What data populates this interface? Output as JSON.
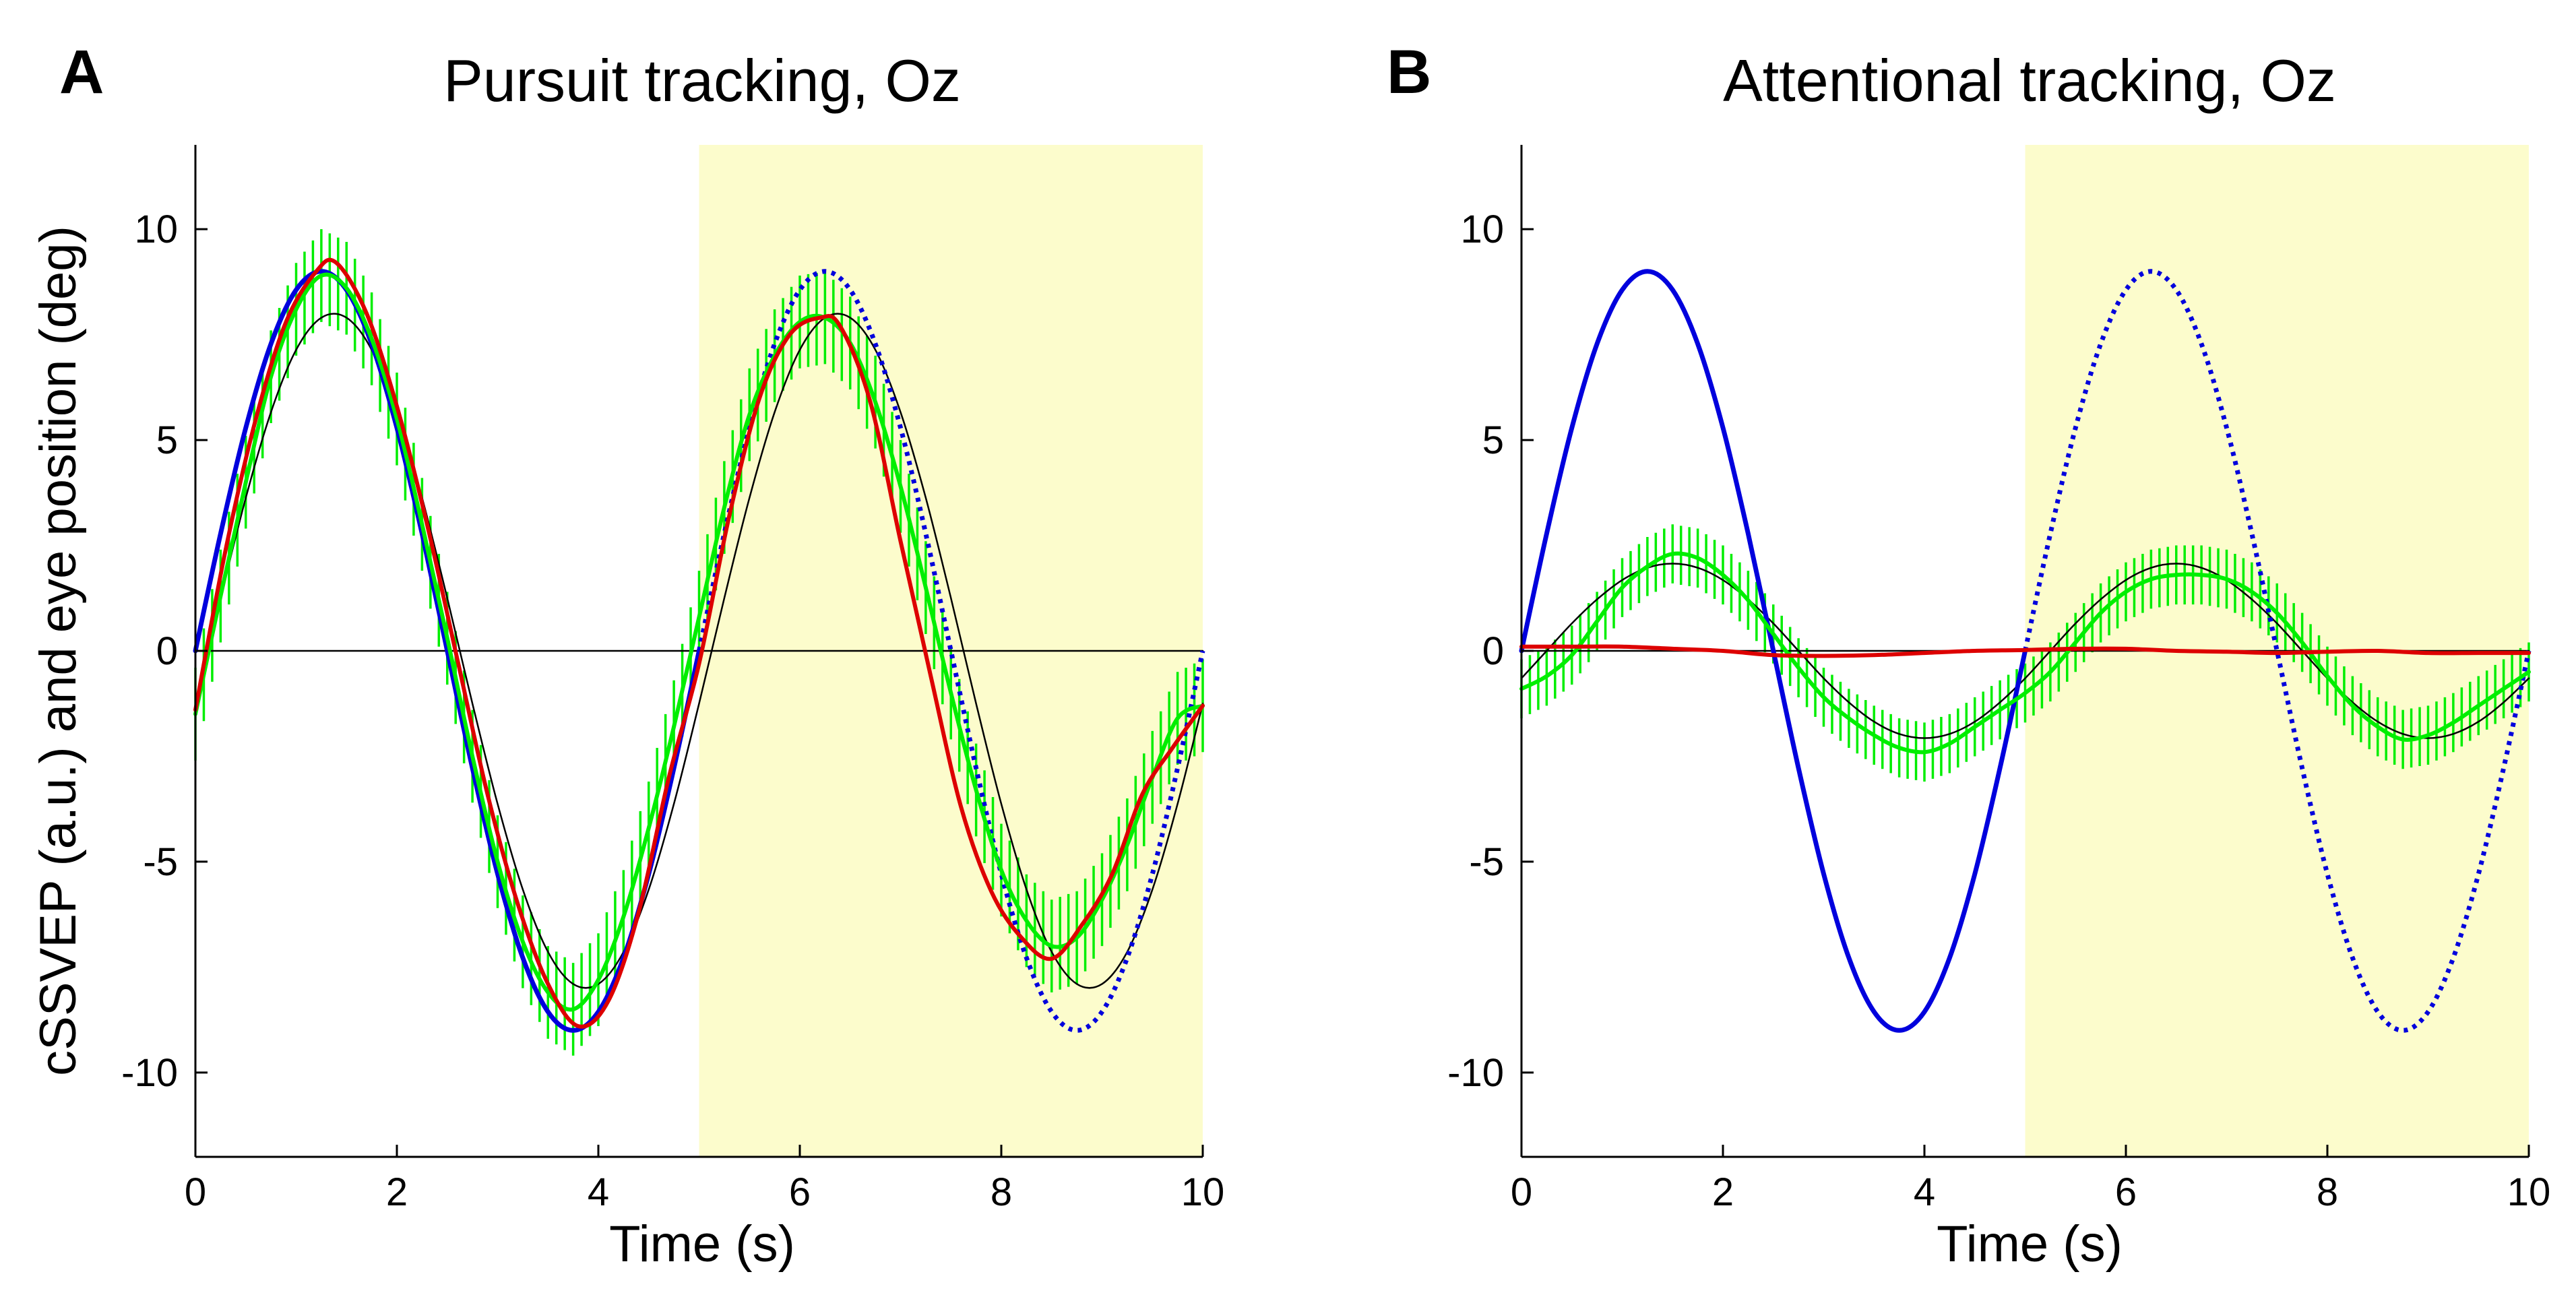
{
  "chart_data": [
    {
      "type": "line",
      "panel_label": "A",
      "title": "Pursuit tracking, Oz",
      "xlabel": "Time (s)",
      "ylabel": "cSSVEP (a.u.) and eye position (deg)",
      "xlim": [
        0,
        10
      ],
      "ylim": [
        -12,
        12
      ],
      "xticks": [
        0,
        2,
        4,
        6,
        8,
        10
      ],
      "yticks": [
        -10,
        -5,
        0,
        5,
        10
      ],
      "xtick_labels": [
        "0",
        "2",
        "4",
        "6",
        "8",
        "10"
      ],
      "ytick_labels": [
        "-10",
        "-5",
        "0",
        "5",
        "10"
      ],
      "shaded_region": {
        "x": [
          5,
          10
        ],
        "color": "#fcfccc"
      },
      "grid": false,
      "series": [
        {
          "role": "target-position",
          "color": "#0000dd",
          "style": "solid",
          "x": [
            0,
            0.25,
            0.5,
            0.75,
            1.0,
            1.25,
            1.5,
            1.75,
            2.0,
            2.25,
            2.5,
            2.75,
            3.0,
            3.25,
            3.5,
            3.75,
            4.0,
            4.25,
            4.5,
            4.75,
            5.0
          ],
          "y": [
            0,
            2.78,
            5.29,
            7.28,
            8.56,
            9.0,
            8.56,
            7.28,
            5.29,
            2.78,
            0,
            -2.78,
            -5.29,
            -7.28,
            -8.56,
            -9.0,
            -8.56,
            -7.28,
            -5.29,
            -2.78,
            0
          ]
        },
        {
          "role": "target-position-second-half",
          "color": "#0000dd",
          "style": "dotted",
          "x": [
            5.0,
            5.25,
            5.5,
            5.75,
            6.0,
            6.25,
            6.5,
            6.75,
            7.0,
            7.25,
            7.5,
            7.75,
            8.0,
            8.25,
            8.5,
            8.75,
            9.0,
            9.25,
            9.5,
            9.75,
            10.0
          ],
          "y": [
            0,
            2.78,
            5.29,
            7.28,
            8.56,
            9.0,
            8.56,
            7.28,
            5.29,
            2.78,
            0,
            -2.78,
            -5.29,
            -7.28,
            -8.56,
            -9.0,
            -8.56,
            -7.28,
            -5.29,
            -2.78,
            0
          ]
        },
        {
          "role": "eye-position",
          "color": "#dd0000",
          "style": "solid",
          "x": [
            0,
            0.3,
            0.6,
            0.9,
            1.2,
            1.4,
            1.7,
            2.0,
            2.3,
            2.6,
            2.9,
            3.2,
            3.5,
            3.8,
            4.1,
            4.4,
            4.7,
            5.0,
            5.3,
            5.6,
            5.9,
            6.2,
            6.4,
            6.7,
            7.0,
            7.3,
            7.6,
            7.9,
            8.2,
            8.5,
            8.8,
            9.1,
            9.4,
            9.7,
            10.0
          ],
          "y": [
            -1.4,
            2.4,
            5.5,
            7.8,
            9.0,
            9.2,
            8.0,
            5.8,
            3.0,
            -0.2,
            -3.4,
            -6.0,
            -7.9,
            -8.9,
            -8.3,
            -6.2,
            -3.0,
            -0.3,
            3.2,
            6.0,
            7.5,
            7.9,
            7.7,
            5.9,
            2.6,
            -0.6,
            -3.7,
            -5.7,
            -6.8,
            -7.3,
            -6.5,
            -5.3,
            -3.4,
            -2.3,
            -1.3
          ]
        },
        {
          "role": "cssvep-mean",
          "color": "#00ee00",
          "style": "solid-with-error-bars",
          "error": 1.1,
          "x": [
            0,
            0.25,
            0.5,
            0.75,
            1.0,
            1.25,
            1.5,
            1.75,
            2.0,
            2.25,
            2.5,
            2.75,
            3.0,
            3.25,
            3.5,
            3.75,
            4.0,
            4.25,
            4.5,
            4.75,
            5.0,
            5.25,
            5.5,
            5.75,
            6.0,
            6.25,
            6.5,
            6.75,
            7.0,
            7.25,
            7.5,
            7.75,
            8.0,
            8.25,
            8.5,
            8.75,
            9.0,
            9.25,
            9.5,
            9.75,
            10.0
          ],
          "y": [
            -1.5,
            1.3,
            4.0,
            6.5,
            8.1,
            8.9,
            8.6,
            7.4,
            5.5,
            3.0,
            0.3,
            -2.5,
            -5.0,
            -6.9,
            -8.1,
            -8.5,
            -7.8,
            -6.3,
            -4.2,
            -1.8,
            0.8,
            3.4,
            5.6,
            7.0,
            7.8,
            7.9,
            7.3,
            5.9,
            3.9,
            1.5,
            -1.0,
            -3.3,
            -5.2,
            -6.4,
            -7.0,
            -6.8,
            -5.9,
            -4.6,
            -3.0,
            -1.6,
            -1.3
          ]
        },
        {
          "role": "sine-fit",
          "color": "#000000",
          "style": "thin",
          "x": [
            0,
            0.25,
            0.5,
            0.75,
            1.0,
            1.25,
            1.5,
            1.75,
            2.0,
            2.25,
            2.5,
            2.75,
            3.0,
            3.25,
            3.5,
            3.75,
            4.0,
            4.25,
            4.5,
            4.75,
            5.0,
            5.25,
            5.5,
            5.75,
            6.0,
            6.25,
            6.5,
            6.75,
            7.0,
            7.25,
            7.5,
            7.75,
            8.0,
            8.25,
            8.5,
            8.75,
            9.0,
            9.25,
            9.5,
            9.75,
            10.0
          ],
          "y": [
            -1.25,
            1.25,
            3.63,
            5.66,
            7.14,
            7.9,
            7.9,
            7.14,
            5.66,
            3.63,
            1.25,
            -1.25,
            -3.63,
            -5.66,
            -7.14,
            -7.9,
            -7.9,
            -7.14,
            -5.66,
            -3.63,
            -1.25,
            1.25,
            3.63,
            5.66,
            7.14,
            7.9,
            7.9,
            7.14,
            5.66,
            3.63,
            1.25,
            -1.25,
            -3.63,
            -5.66,
            -7.14,
            -7.9,
            -7.9,
            -7.14,
            -5.66,
            -3.63,
            -1.25
          ]
        },
        {
          "role": "zero-line",
          "color": "#000000",
          "style": "thin",
          "x": [
            0,
            10
          ],
          "y": [
            0,
            0
          ]
        }
      ]
    },
    {
      "type": "line",
      "panel_label": "B",
      "title": "Attentional tracking, Oz",
      "xlabel": "Time (s)",
      "ylabel": "",
      "xlim": [
        0,
        10
      ],
      "ylim": [
        -12,
        12
      ],
      "xticks": [
        0,
        2,
        4,
        6,
        8,
        10
      ],
      "yticks": [
        -10,
        -5,
        0,
        5,
        10
      ],
      "xtick_labels": [
        "0",
        "2",
        "4",
        "6",
        "8",
        "10"
      ],
      "ytick_labels": [
        "-10",
        "-5",
        "0",
        "5",
        "10"
      ],
      "shaded_region": {
        "x": [
          5,
          10
        ],
        "color": "#fcfccc"
      },
      "grid": false,
      "series": [
        {
          "role": "target-position",
          "color": "#0000dd",
          "style": "solid",
          "x": [
            0,
            0.25,
            0.5,
            0.75,
            1.0,
            1.25,
            1.5,
            1.75,
            2.0,
            2.25,
            2.5,
            2.75,
            3.0,
            3.25,
            3.5,
            3.75,
            4.0,
            4.25,
            4.5,
            4.75,
            5.0
          ],
          "y": [
            0,
            2.78,
            5.29,
            7.28,
            8.56,
            9.0,
            8.56,
            7.28,
            5.29,
            2.78,
            0,
            -2.78,
            -5.29,
            -7.28,
            -8.56,
            -9.0,
            -8.56,
            -7.28,
            -5.29,
            -2.78,
            0
          ]
        },
        {
          "role": "target-position-second-half",
          "color": "#0000dd",
          "style": "dotted",
          "x": [
            5.0,
            5.25,
            5.5,
            5.75,
            6.0,
            6.25,
            6.5,
            6.75,
            7.0,
            7.25,
            7.5,
            7.75,
            8.0,
            8.25,
            8.5,
            8.75,
            9.0,
            9.25,
            9.5,
            9.75,
            10.0
          ],
          "y": [
            0,
            2.78,
            5.29,
            7.28,
            8.56,
            9.0,
            8.56,
            7.28,
            5.29,
            2.78,
            0,
            -2.78,
            -5.29,
            -7.28,
            -8.56,
            -9.0,
            -8.56,
            -7.28,
            -5.29,
            -2.78,
            0
          ]
        },
        {
          "role": "eye-position",
          "color": "#dd0000",
          "style": "solid",
          "x": [
            0,
            0.5,
            1.0,
            1.5,
            2.0,
            2.5,
            3.0,
            3.5,
            4.0,
            4.5,
            5.0,
            5.5,
            6.0,
            6.5,
            7.0,
            7.5,
            8.0,
            8.5,
            9.0,
            9.5,
            10.0
          ],
          "y": [
            0.1,
            0.1,
            0.1,
            0.05,
            0.0,
            -0.1,
            -0.12,
            -0.1,
            -0.05,
            0.0,
            0.02,
            0.05,
            0.05,
            0.0,
            -0.02,
            -0.05,
            -0.02,
            0.0,
            -0.05,
            -0.05,
            -0.05
          ]
        },
        {
          "role": "cssvep-mean",
          "color": "#00ee00",
          "style": "solid-with-error-bars",
          "error": 0.7,
          "x": [
            0,
            0.25,
            0.5,
            0.75,
            1.0,
            1.25,
            1.5,
            1.75,
            2.0,
            2.25,
            2.5,
            2.75,
            3.0,
            3.25,
            3.5,
            3.75,
            4.0,
            4.25,
            4.5,
            4.75,
            5.0,
            5.25,
            5.5,
            5.75,
            6.0,
            6.25,
            6.5,
            6.75,
            7.0,
            7.25,
            7.5,
            7.75,
            8.0,
            8.25,
            8.5,
            8.75,
            9.0,
            9.25,
            9.5,
            9.75,
            10.0
          ],
          "y": [
            -0.9,
            -0.6,
            -0.1,
            0.7,
            1.5,
            2.0,
            2.3,
            2.2,
            1.8,
            1.2,
            0.4,
            -0.4,
            -1.1,
            -1.6,
            -2.0,
            -2.3,
            -2.4,
            -2.2,
            -1.8,
            -1.4,
            -1.0,
            -0.5,
            0.2,
            0.9,
            1.4,
            1.7,
            1.8,
            1.8,
            1.7,
            1.4,
            0.9,
            0.2,
            -0.6,
            -1.3,
            -1.8,
            -2.1,
            -2.0,
            -1.7,
            -1.3,
            -0.9,
            -0.5
          ]
        },
        {
          "role": "sine-fit",
          "color": "#000000",
          "style": "thin",
          "x": [
            0,
            0.25,
            0.5,
            0.75,
            1.0,
            1.25,
            1.5,
            1.75,
            2.0,
            2.25,
            2.5,
            2.75,
            3.0,
            3.25,
            3.5,
            3.75,
            4.0,
            4.25,
            4.5,
            4.75,
            5.0,
            5.25,
            5.5,
            5.75,
            6.0,
            6.25,
            6.5,
            6.75,
            7.0,
            7.25,
            7.5,
            7.75,
            8.0,
            8.25,
            8.5,
            8.75,
            9.0,
            9.25,
            9.5,
            9.75,
            10.0
          ],
          "y": [
            -0.65,
            0.0,
            0.65,
            1.22,
            1.68,
            1.97,
            2.07,
            1.97,
            1.68,
            1.22,
            0.65,
            0.0,
            -0.65,
            -1.22,
            -1.68,
            -1.97,
            -2.07,
            -1.97,
            -1.68,
            -1.22,
            -0.65,
            0.0,
            0.65,
            1.22,
            1.68,
            1.97,
            2.07,
            1.97,
            1.68,
            1.22,
            0.65,
            0.0,
            -0.65,
            -1.22,
            -1.68,
            -1.97,
            -2.07,
            -1.97,
            -1.68,
            -1.22,
            -0.65
          ]
        },
        {
          "role": "zero-line",
          "color": "#000000",
          "style": "thin",
          "x": [
            0,
            10
          ],
          "y": [
            0,
            0
          ]
        }
      ]
    }
  ]
}
